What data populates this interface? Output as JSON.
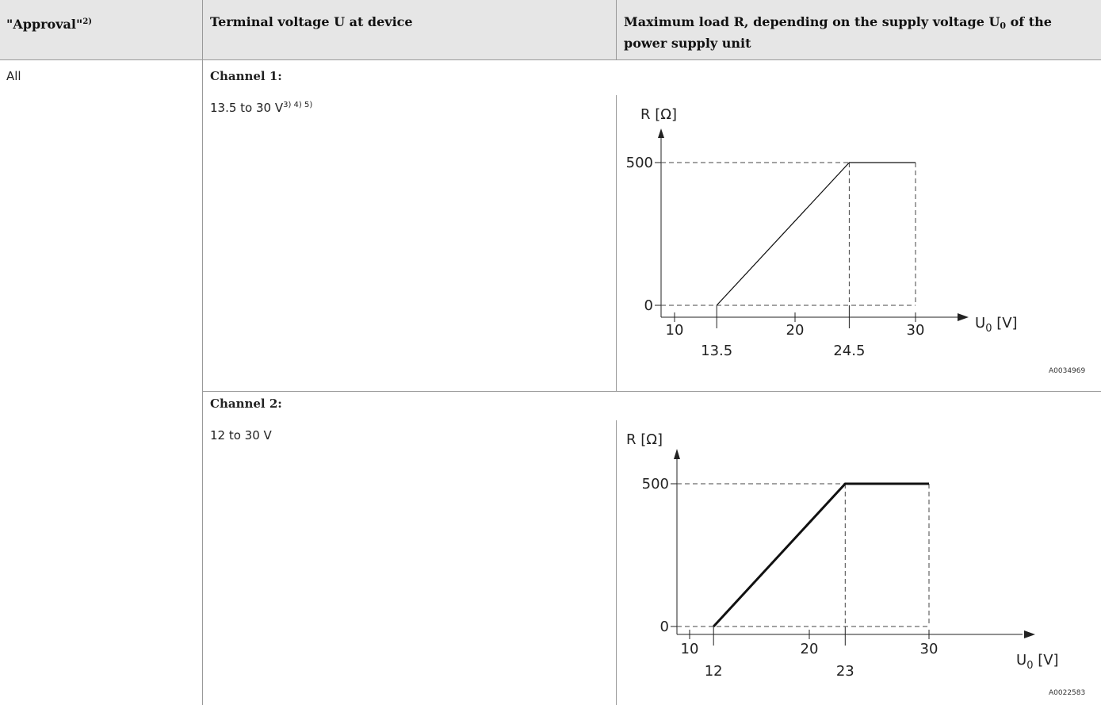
{
  "table": {
    "headers": {
      "approval": "\"Approval\"",
      "approval_sup": "2)",
      "terminal_voltage": "Terminal voltage U at device",
      "max_load_a": "Maximum load R, depending on the supply voltage U",
      "max_load_sub": "0",
      "max_load_b": " of the power supply unit"
    },
    "approval_value": "All",
    "channel1": {
      "label": "Channel 1:",
      "voltage": "13.5 to 30 V",
      "voltage_sup": "3) 4) 5)",
      "figure_id": "A0034969"
    },
    "channel2": {
      "label": "Channel 2:",
      "voltage": "12 to 30 V",
      "figure_id": "A0022583"
    }
  },
  "chart_data": [
    {
      "type": "line",
      "y_label": "R [Ω]",
      "x_label_main": "U",
      "x_label_sub": "0",
      "x_label_unit": " [V]",
      "x_ticks": [
        "10",
        "20",
        "30"
      ],
      "x_marks": [
        "13.5",
        "24.5"
      ],
      "y_ticks": [
        "500",
        "0"
      ],
      "series": [
        {
          "x": [
            13.5,
            24.5,
            30
          ],
          "y": [
            0,
            500,
            500
          ]
        }
      ],
      "xlim": [
        10,
        30
      ],
      "ylim": [
        0,
        500
      ]
    },
    {
      "type": "line",
      "y_label": "R [Ω]",
      "x_label_main": "U",
      "x_label_sub": "0",
      "x_label_unit": " [V]",
      "x_ticks": [
        "10",
        "20",
        "30"
      ],
      "x_marks": [
        "12",
        "23"
      ],
      "y_ticks": [
        "500",
        "0"
      ],
      "series": [
        {
          "x": [
            12,
            23,
            30
          ],
          "y": [
            0,
            500,
            500
          ]
        }
      ],
      "xlim": [
        10,
        30
      ],
      "ylim": [
        0,
        500
      ]
    }
  ]
}
